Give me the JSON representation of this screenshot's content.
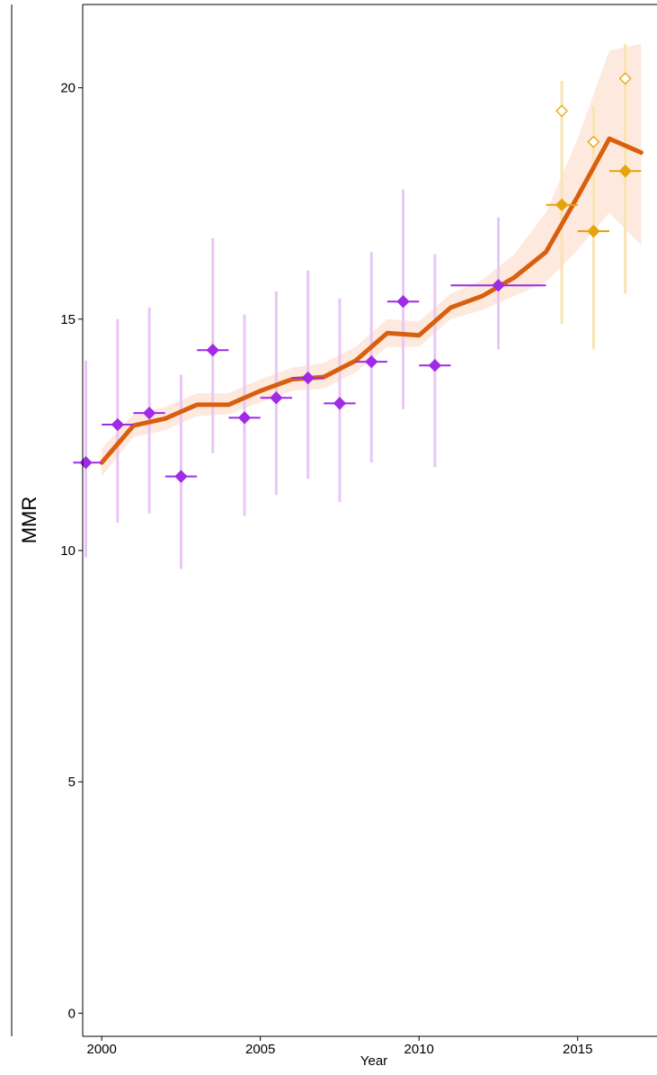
{
  "chart_data": {
    "type": "line",
    "title": "",
    "xlabel": "Year",
    "ylabel": "MMR",
    "xlim": [
      1999.4,
      2017.5
    ],
    "ylim": [
      -0.5,
      21.8
    ],
    "x_ticks": [
      2000,
      2005,
      2010,
      2015
    ],
    "y_ticks": [
      0,
      5,
      10,
      15,
      20
    ],
    "grid": false,
    "legend": "none",
    "colors": {
      "estimate_line": "#d95f0e",
      "band_fill": "#fde3d6",
      "observed": "#a12ae6",
      "observed_bar": "#e9c6f5",
      "recent": "#e5a50a",
      "recent_bar": "#f8e4b2"
    },
    "estimate": {
      "x": [
        2000,
        2001,
        2002,
        2003,
        2004,
        2005,
        2006,
        2007,
        2008,
        2009,
        2010,
        2011,
        2012,
        2013,
        2014,
        2015,
        2016,
        2017
      ],
      "y": [
        11.9,
        12.7,
        12.85,
        13.15,
        13.15,
        13.45,
        13.7,
        13.75,
        14.1,
        14.7,
        14.65,
        15.25,
        15.5,
        15.9,
        16.45,
        17.65,
        18.9,
        18.6
      ],
      "lower": [
        11.6,
        12.45,
        12.6,
        12.9,
        12.95,
        13.2,
        13.45,
        13.5,
        13.85,
        14.4,
        14.4,
        15.0,
        15.2,
        15.5,
        15.8,
        16.5,
        17.3,
        16.6
      ],
      "upper": [
        12.2,
        12.95,
        13.1,
        13.4,
        13.4,
        13.7,
        13.95,
        14.05,
        14.4,
        15.0,
        14.95,
        15.55,
        15.85,
        16.4,
        17.3,
        18.9,
        20.8,
        20.95
      ]
    },
    "observed": [
      {
        "x": 1999.5,
        "y": 11.9,
        "lo": 9.85,
        "hi": 14.1,
        "x0": 1999.1,
        "x1": 2000.0
      },
      {
        "x": 2000.5,
        "y": 12.72,
        "lo": 10.6,
        "hi": 15.0,
        "x0": 2000.0,
        "x1": 2001.0
      },
      {
        "x": 2001.5,
        "y": 12.97,
        "lo": 10.8,
        "hi": 15.25,
        "x0": 2001.0,
        "x1": 2002.0
      },
      {
        "x": 2002.5,
        "y": 11.6,
        "lo": 9.6,
        "hi": 13.8,
        "x0": 2002.0,
        "x1": 2003.0
      },
      {
        "x": 2003.5,
        "y": 14.33,
        "lo": 12.1,
        "hi": 16.75,
        "x0": 2003.0,
        "x1": 2004.0
      },
      {
        "x": 2004.5,
        "y": 12.87,
        "lo": 10.75,
        "hi": 15.1,
        "x0": 2004.0,
        "x1": 2005.0
      },
      {
        "x": 2005.5,
        "y": 13.3,
        "lo": 11.2,
        "hi": 15.6,
        "x0": 2005.0,
        "x1": 2006.0
      },
      {
        "x": 2006.5,
        "y": 13.73,
        "lo": 11.55,
        "hi": 16.05,
        "x0": 2006.0,
        "x1": 2007.0
      },
      {
        "x": 2007.5,
        "y": 13.18,
        "lo": 11.05,
        "hi": 15.45,
        "x0": 2007.0,
        "x1": 2008.0
      },
      {
        "x": 2008.5,
        "y": 14.08,
        "lo": 11.9,
        "hi": 16.45,
        "x0": 2008.0,
        "x1": 2009.0
      },
      {
        "x": 2009.5,
        "y": 15.38,
        "lo": 13.05,
        "hi": 17.8,
        "x0": 2009.0,
        "x1": 2010.0
      },
      {
        "x": 2010.5,
        "y": 14.0,
        "lo": 11.8,
        "hi": 16.4,
        "x0": 2010.0,
        "x1": 2011.0
      },
      {
        "x": 2012.5,
        "y": 15.73,
        "lo": 14.35,
        "hi": 17.2,
        "x0": 2011.0,
        "x1": 2014.0
      }
    ],
    "recent": [
      {
        "x": 2014.5,
        "y": 17.47,
        "lo": 14.9,
        "hi": 20.15,
        "x0": 2014.0,
        "x1": 2015.0,
        "adjusted": 19.5
      },
      {
        "x": 2015.5,
        "y": 16.9,
        "lo": 14.35,
        "hi": 19.6,
        "x0": 2015.0,
        "x1": 2016.0,
        "adjusted": 18.83
      },
      {
        "x": 2016.5,
        "y": 18.2,
        "lo": 15.55,
        "hi": 20.95,
        "x0": 2016.0,
        "x1": 2017.0,
        "adjusted": 20.2
      }
    ]
  }
}
